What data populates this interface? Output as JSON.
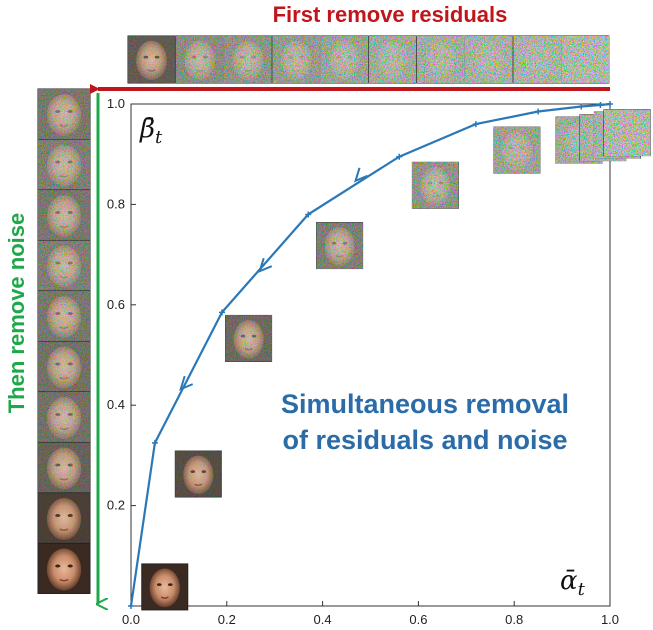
{
  "headings": {
    "top": "First remove residuals",
    "left": "Then remove noise",
    "annotation_line1": "Simultaneous removal",
    "annotation_line2": "of residuals and noise"
  },
  "colors": {
    "top_arrow": "#c0161b",
    "left_arrow": "#1ea84a",
    "curve": "#2b78b8",
    "annotation": "#2b6ca8"
  },
  "chart_data": {
    "type": "line",
    "xlabel": "ᾱ_t",
    "ylabel": "β̄_t",
    "xlim": [
      0.0,
      1.0
    ],
    "ylim": [
      0.0,
      1.0
    ],
    "x_ticks": [
      "0.0",
      "0.2",
      "0.4",
      "0.6",
      "0.8",
      "1.0"
    ],
    "y_ticks": [
      "0.2",
      "0.4",
      "0.6",
      "0.8",
      "1.0"
    ],
    "grid": false,
    "series": [
      {
        "x": [
          0.0,
          0.05,
          0.19,
          0.37,
          0.56,
          0.72,
          0.85,
          0.94,
          0.98,
          1.0
        ],
        "y": [
          0.0,
          0.325,
          0.585,
          0.78,
          0.895,
          0.96,
          0.985,
          0.995,
          0.998,
          1.0
        ]
      }
    ],
    "direction_arrows": [
      {
        "x": 0.475,
        "y": 0.855
      },
      {
        "x": 0.275,
        "y": 0.675
      },
      {
        "x": 0.11,
        "y": 0.44
      }
    ],
    "thumbnails_on_curve": [
      {
        "x": 0.035,
        "y": 0.04,
        "noise": 0.0
      },
      {
        "x": 0.105,
        "y": 0.265,
        "noise": 0.25
      },
      {
        "x": 0.21,
        "y": 0.535,
        "noise": 0.45
      },
      {
        "x": 0.4,
        "y": 0.72,
        "noise": 0.6
      },
      {
        "x": 0.6,
        "y": 0.84,
        "noise": 0.75
      },
      {
        "x": 0.77,
        "y": 0.91,
        "noise": 0.85
      },
      {
        "x": 0.9,
        "y": 0.93,
        "noise": 0.9
      },
      {
        "x": 0.95,
        "y": 0.935,
        "noise": 0.95
      },
      {
        "x": 0.98,
        "y": 0.94,
        "noise": 0.95
      },
      {
        "x": 1.0,
        "y": 0.945,
        "noise": 1.0
      }
    ],
    "top_strip_noise": [
      0.35,
      0.7,
      0.75,
      0.8,
      0.85,
      0.9,
      0.92,
      0.95,
      0.97,
      1.0
    ],
    "left_strip_noise": [
      0.55,
      0.6,
      0.55,
      0.6,
      0.55,
      0.5,
      0.5,
      0.4,
      0.15,
      0.0
    ]
  }
}
